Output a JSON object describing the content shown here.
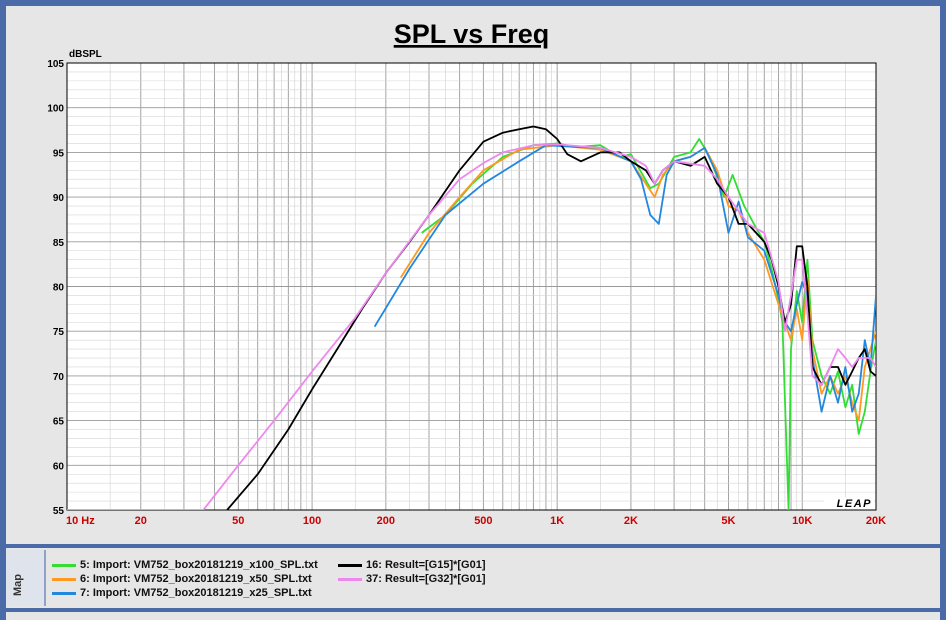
{
  "sidebar": {
    "map_label": "Map"
  },
  "chart_data": {
    "type": "line",
    "title": "SPL vs Freq",
    "ylabel": "dBSPL",
    "xscale": "log",
    "xlim": [
      10,
      20000
    ],
    "ylim": [
      55,
      105
    ],
    "x_tick_labels": [
      "10 Hz",
      "20",
      "50",
      "100",
      "200",
      "500",
      "1K",
      "2K",
      "5K",
      "10K",
      "20K"
    ],
    "x_tick_values": [
      10,
      20,
      50,
      100,
      200,
      500,
      1000,
      2000,
      5000,
      10000,
      20000
    ],
    "y_ticks": [
      55,
      60,
      65,
      70,
      75,
      80,
      85,
      90,
      95,
      100,
      105
    ],
    "watermark": "LEAP",
    "grid": true,
    "legend_position": "bottom",
    "series": [
      {
        "name": "5: Import: VM752_box20181219_x100_SPL.txt",
        "color": "#33dd33",
        "points": [
          [
            280,
            86
          ],
          [
            350,
            88
          ],
          [
            450,
            91.5
          ],
          [
            600,
            94.5
          ],
          [
            800,
            95.8
          ],
          [
            1000,
            96
          ],
          [
            1200,
            95.6
          ],
          [
            1500,
            95.8
          ],
          [
            1800,
            94.5
          ],
          [
            2000,
            94.8
          ],
          [
            2400,
            91
          ],
          [
            2600,
            91.5
          ],
          [
            2800,
            93
          ],
          [
            3000,
            94.5
          ],
          [
            3500,
            95
          ],
          [
            3800,
            96.5
          ],
          [
            4200,
            94.5
          ],
          [
            4800,
            90
          ],
          [
            5200,
            92.5
          ],
          [
            5800,
            89
          ],
          [
            6500,
            86.5
          ],
          [
            7000,
            85
          ],
          [
            7500,
            82
          ],
          [
            8000,
            78.5
          ],
          [
            8300,
            76
          ],
          [
            8600,
            63
          ],
          [
            8800,
            55
          ],
          [
            9000,
            73
          ],
          [
            9500,
            79.5
          ],
          [
            10000,
            76
          ],
          [
            10500,
            83
          ],
          [
            11000,
            74
          ],
          [
            12000,
            70
          ],
          [
            13000,
            68
          ],
          [
            14000,
            70.5
          ],
          [
            15000,
            66.5
          ],
          [
            16000,
            69
          ],
          [
            17000,
            63.5
          ],
          [
            18000,
            66
          ],
          [
            19000,
            70.5
          ],
          [
            20000,
            74
          ]
        ]
      },
      {
        "name": "6: Import: VM752_box20181219_x50_SPL.txt",
        "color": "#ff9922",
        "points": [
          [
            230,
            81
          ],
          [
            300,
            86
          ],
          [
            400,
            90
          ],
          [
            500,
            93
          ],
          [
            700,
            95.3
          ],
          [
            1000,
            95.8
          ],
          [
            1500,
            95.3
          ],
          [
            2000,
            94
          ],
          [
            2300,
            91.5
          ],
          [
            2500,
            90
          ],
          [
            2700,
            92.5
          ],
          [
            3000,
            94
          ],
          [
            3500,
            94.5
          ],
          [
            4000,
            95.5
          ],
          [
            4500,
            93
          ],
          [
            5000,
            89
          ],
          [
            5500,
            88.5
          ],
          [
            6000,
            86
          ],
          [
            7000,
            83
          ],
          [
            8000,
            78
          ],
          [
            9000,
            74
          ],
          [
            9500,
            77.5
          ],
          [
            10000,
            74
          ],
          [
            10500,
            81
          ],
          [
            11000,
            73
          ],
          [
            12000,
            68
          ],
          [
            13000,
            70
          ],
          [
            14000,
            68
          ],
          [
            15000,
            70
          ],
          [
            16000,
            67
          ],
          [
            17000,
            65
          ],
          [
            18000,
            71
          ],
          [
            20000,
            75
          ]
        ]
      },
      {
        "name": "7: Import: VM752_box20181219_x25_SPL.txt",
        "color": "#2288dd",
        "points": [
          [
            180,
            75.5
          ],
          [
            250,
            82
          ],
          [
            350,
            88
          ],
          [
            500,
            91.5
          ],
          [
            700,
            94
          ],
          [
            900,
            95.8
          ],
          [
            1200,
            95.6
          ],
          [
            1500,
            95.5
          ],
          [
            2000,
            94
          ],
          [
            2200,
            92
          ],
          [
            2400,
            88
          ],
          [
            2600,
            87
          ],
          [
            2800,
            92.5
          ],
          [
            3000,
            94
          ],
          [
            3500,
            94.5
          ],
          [
            4000,
            95.5
          ],
          [
            4500,
            92.5
          ],
          [
            5000,
            86
          ],
          [
            5500,
            89.5
          ],
          [
            6000,
            85.5
          ],
          [
            7000,
            84
          ],
          [
            8000,
            79
          ],
          [
            8500,
            76
          ],
          [
            9000,
            75
          ],
          [
            9500,
            78
          ],
          [
            10000,
            80.5
          ],
          [
            10500,
            79
          ],
          [
            11000,
            72
          ],
          [
            12000,
            66
          ],
          [
            13000,
            70
          ],
          [
            14000,
            67
          ],
          [
            15000,
            71
          ],
          [
            16000,
            66
          ],
          [
            17000,
            68
          ],
          [
            18000,
            74
          ],
          [
            19000,
            71
          ],
          [
            20000,
            79
          ]
        ]
      },
      {
        "name": "16: Result=[G15]*[G01]",
        "color": "#000000",
        "points": [
          [
            45,
            55
          ],
          [
            60,
            59
          ],
          [
            80,
            64
          ],
          [
            100,
            68.5
          ],
          [
            130,
            73.5
          ],
          [
            160,
            77.5
          ],
          [
            200,
            81.5
          ],
          [
            250,
            85
          ],
          [
            300,
            88
          ],
          [
            400,
            93
          ],
          [
            500,
            96.2
          ],
          [
            600,
            97.2
          ],
          [
            700,
            97.6
          ],
          [
            800,
            97.9
          ],
          [
            900,
            97.6
          ],
          [
            1000,
            96.5
          ],
          [
            1100,
            94.8
          ],
          [
            1250,
            94
          ],
          [
            1500,
            95
          ],
          [
            1800,
            95
          ],
          [
            2000,
            94
          ],
          [
            2300,
            93
          ],
          [
            2500,
            91.5
          ],
          [
            2700,
            93
          ],
          [
            3000,
            94
          ],
          [
            3500,
            93.5
          ],
          [
            4000,
            94.5
          ],
          [
            4500,
            91.5
          ],
          [
            5000,
            90
          ],
          [
            5500,
            87
          ],
          [
            6000,
            87
          ],
          [
            7000,
            85
          ],
          [
            7500,
            83
          ],
          [
            8000,
            80
          ],
          [
            8500,
            76
          ],
          [
            9000,
            78
          ],
          [
            9500,
            84.5
          ],
          [
            10000,
            84.5
          ],
          [
            10500,
            80
          ],
          [
            11000,
            71
          ],
          [
            12000,
            69
          ],
          [
            13000,
            71
          ],
          [
            14000,
            71
          ],
          [
            15000,
            69
          ],
          [
            16000,
            70.5
          ],
          [
            17000,
            72
          ],
          [
            18000,
            73
          ],
          [
            19000,
            70.5
          ],
          [
            20000,
            70
          ]
        ]
      },
      {
        "name": "37: Result=[G32]*[G01]",
        "color": "#ee88ee",
        "points": [
          [
            10,
            55
          ],
          [
            36,
            55
          ],
          [
            50,
            60
          ],
          [
            70,
            65
          ],
          [
            100,
            70.5
          ],
          [
            150,
            76.5
          ],
          [
            200,
            81.5
          ],
          [
            300,
            88
          ],
          [
            400,
            92
          ],
          [
            500,
            93.8
          ],
          [
            600,
            95
          ],
          [
            800,
            95.8
          ],
          [
            1000,
            95.9
          ],
          [
            1500,
            95.5
          ],
          [
            2000,
            94.5
          ],
          [
            2300,
            93.5
          ],
          [
            2500,
            91.5
          ],
          [
            2700,
            93
          ],
          [
            3000,
            94
          ],
          [
            4000,
            93.5
          ],
          [
            4500,
            92
          ],
          [
            5000,
            90
          ],
          [
            6000,
            87
          ],
          [
            7000,
            86
          ],
          [
            8000,
            80.5
          ],
          [
            8500,
            75
          ],
          [
            9000,
            79
          ],
          [
            9500,
            83
          ],
          [
            10000,
            83
          ],
          [
            10500,
            77
          ],
          [
            11000,
            70
          ],
          [
            12000,
            69
          ],
          [
            13000,
            71
          ],
          [
            14000,
            73
          ],
          [
            15000,
            72
          ],
          [
            16000,
            71
          ],
          [
            17000,
            72
          ],
          [
            18000,
            72
          ],
          [
            19000,
            72
          ],
          [
            20000,
            71
          ]
        ]
      }
    ]
  }
}
